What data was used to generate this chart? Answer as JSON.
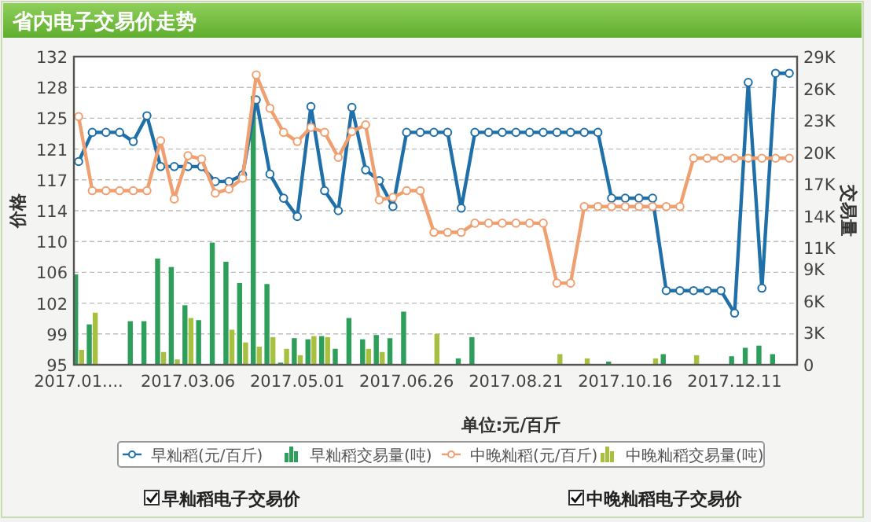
{
  "chart_data": {
    "type": "line",
    "title": "省内电子交易价走势",
    "ylabel": "价格",
    "y2label": "交易量",
    "annotations": [
      "单位:元/百斤",
      "早籼稻电子交易价",
      "中晚籼稻电子交易价"
    ],
    "categories": [
      "2017.01....",
      null,
      null,
      null,
      null,
      null,
      null,
      null,
      "2017.03.06",
      null,
      null,
      null,
      null,
      null,
      null,
      null,
      "2017.05.01",
      null,
      null,
      null,
      null,
      null,
      null,
      null,
      "2017.06.26",
      null,
      null,
      null,
      null,
      null,
      null,
      null,
      "2017.08.21",
      null,
      null,
      null,
      null,
      null,
      null,
      null,
      "2017.10.16",
      null,
      null,
      null,
      null,
      null,
      null,
      null,
      "2017.12.11",
      null,
      null,
      null,
      null
    ],
    "series": [
      {
        "name": "早籼稻(元/百斤)",
        "color": "#1f6fa8",
        "values": [
          119.4,
          122.9,
          122.9,
          122.9,
          121.8,
          124.9,
          118.8,
          118.8,
          118.8,
          118.8,
          117.0,
          117.0,
          117.8,
          126.8,
          117.9,
          115.0,
          112.8,
          126.0,
          115.9,
          113.5,
          125.9,
          118.4,
          117.1,
          114.0,
          122.9,
          122.9,
          122.9,
          122.9,
          113.8,
          122.9,
          122.9,
          122.9,
          122.9,
          122.9,
          122.9,
          122.9,
          122.9,
          122.9,
          122.9,
          115.0,
          115.0,
          115.0,
          115.0,
          103.9,
          103.9,
          103.9,
          103.9,
          103.9,
          101.2,
          128.9,
          104.2,
          130.0,
          130.0
        ]
      },
      {
        "name": "早籼稻交易量(吨)",
        "type": "bar",
        "axis": "y2",
        "color": "#2e9e5b",
        "values": [
          8500,
          3800,
          null,
          null,
          4100,
          4100,
          10000,
          9200,
          5600,
          4200,
          11500,
          9700,
          7700,
          25300,
          7600,
          200,
          2500,
          2400,
          2700,
          1500,
          4400,
          2400,
          2800,
          2500,
          5000,
          null,
          null,
          null,
          600,
          2600,
          null,
          null,
          null,
          null,
          null,
          null,
          null,
          null,
          null,
          300,
          null,
          null,
          null,
          1000,
          null,
          null,
          null,
          null,
          800,
          1600,
          1800,
          1000,
          null
        ]
      },
      {
        "name": "中晚籼稻(元/百斤)",
        "color": "#f0a070",
        "values": [
          124.8,
          115.9,
          115.9,
          115.9,
          115.9,
          115.9,
          121.9,
          114.9,
          120.1,
          119.7,
          115.6,
          116.1,
          117.4,
          129.8,
          125.8,
          122.9,
          121.8,
          123.5,
          122.9,
          119.9,
          123.0,
          123.8,
          114.8,
          115.1,
          115.9,
          115.9,
          110.9,
          110.9,
          110.9,
          112.0,
          112.0,
          112.0,
          112.0,
          112.0,
          112.0,
          104.8,
          104.8,
          114.0,
          114.0,
          114.0,
          114.0,
          114.0,
          114.0,
          114.0,
          114.0,
          119.8,
          119.8,
          119.8,
          119.8,
          119.8,
          119.8,
          119.8,
          119.8
        ]
      },
      {
        "name": "中晚籼稻交易量(吨)",
        "type": "bar",
        "axis": "y2",
        "color": "#a8c040",
        "values": [
          1400,
          4900,
          null,
          null,
          null,
          null,
          1200,
          500,
          4400,
          null,
          null,
          3300,
          2100,
          1700,
          2600,
          1500,
          900,
          2700,
          2600,
          null,
          null,
          1500,
          1200,
          null,
          null,
          null,
          2900,
          null,
          null,
          null,
          null,
          null,
          null,
          null,
          null,
          1000,
          null,
          600,
          null,
          null,
          null,
          null,
          600,
          null,
          null,
          900,
          null,
          null,
          null,
          null,
          null,
          null,
          null
        ]
      }
    ],
    "ylim": [
      95,
      132
    ],
    "yticks": [
      95,
      {
        "value": 98.7,
        "label": "99"
      },
      {
        "value": 102.4,
        "label": "102"
      },
      {
        "value": 106.1,
        "label": "106"
      },
      {
        "value": 109.8,
        "label": "110"
      },
      {
        "value": 113.5,
        "label": "114"
      },
      {
        "value": 117.2,
        "label": "117"
      },
      {
        "value": 120.9,
        "label": "121"
      },
      {
        "value": 124.6,
        "label": "125"
      },
      {
        "value": 128.3,
        "label": "128"
      },
      132
    ],
    "y2lim": [
      0,
      29000
    ],
    "y2ticks": [
      0,
      {
        "value": 3000,
        "label": "3K"
      },
      {
        "value": 6000,
        "label": "6K"
      },
      {
        "value": 9000,
        "label": "9K"
      },
      {
        "value": 11000,
        "label": "11K"
      },
      {
        "value": 14000,
        "label": "14K"
      },
      {
        "value": 17000,
        "label": "17K"
      },
      {
        "value": 20000,
        "label": "20K"
      },
      {
        "value": 23000,
        "label": "23K"
      },
      {
        "value": 26000,
        "label": "26K"
      },
      {
        "value": 29000,
        "label": "29K"
      }
    ],
    "grid": "y",
    "legend": "bottom",
    "marker": "circle",
    "line_style": "solid"
  }
}
